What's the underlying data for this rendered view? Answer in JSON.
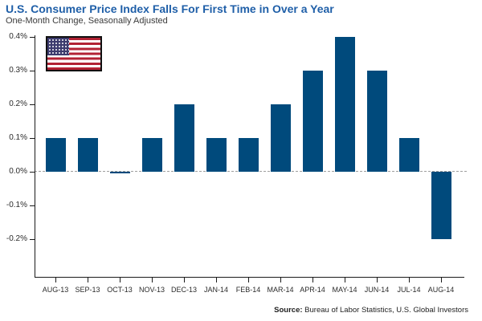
{
  "header": {
    "title": "U.S. Consumer Price Index Falls For First Time in Over a Year",
    "subtitle": "One-Month Change, Seasonally Adjusted"
  },
  "source": {
    "label": "Source:",
    "text": " Bureau of Labor Statistics, U.S. Global Investors"
  },
  "colors": {
    "bar": "#004A7C",
    "title": "#1F5FA8",
    "axis": "#1A1A1A",
    "zero_line": "#9E9E9E",
    "tick_label": "#2B2B2B",
    "flag_red": "#B22234",
    "flag_blue": "#3C3B6E",
    "flag_white": "#FFFFFF"
  },
  "flag": {
    "name": "us-flag-image"
  },
  "chart_data": {
    "type": "bar",
    "title": "U.S. Consumer Price Index Falls For First Time in Over a Year",
    "subtitle": "One-Month Change, Seasonally Adjusted",
    "categories": [
      "AUG-13",
      "SEP-13",
      "OCT-13",
      "NOV-13",
      "DEC-13",
      "JAN-14",
      "FEB-14",
      "MAR-14",
      "APR-14",
      "MAY-14",
      "JUN-14",
      "JUL-14",
      "AUG-14"
    ],
    "values": [
      0.1,
      0.1,
      0.0,
      0.1,
      0.2,
      0.1,
      0.1,
      0.2,
      0.3,
      0.4,
      0.3,
      0.1,
      -0.2
    ],
    "unit": "%",
    "xlabel": "",
    "ylabel": "",
    "ylim": [
      -0.3,
      0.4
    ],
    "yticks": [
      "0.4%",
      "0.3%",
      "0.2%",
      "0.1%",
      "0.0%",
      "-0.1%",
      "-0.2%"
    ],
    "ytick_values": [
      0.4,
      0.3,
      0.2,
      0.1,
      0.0,
      -0.1,
      -0.2
    ],
    "grid": false,
    "zero_line_style": "dashed",
    "legend": "none",
    "bar_color": "#004A7C"
  }
}
